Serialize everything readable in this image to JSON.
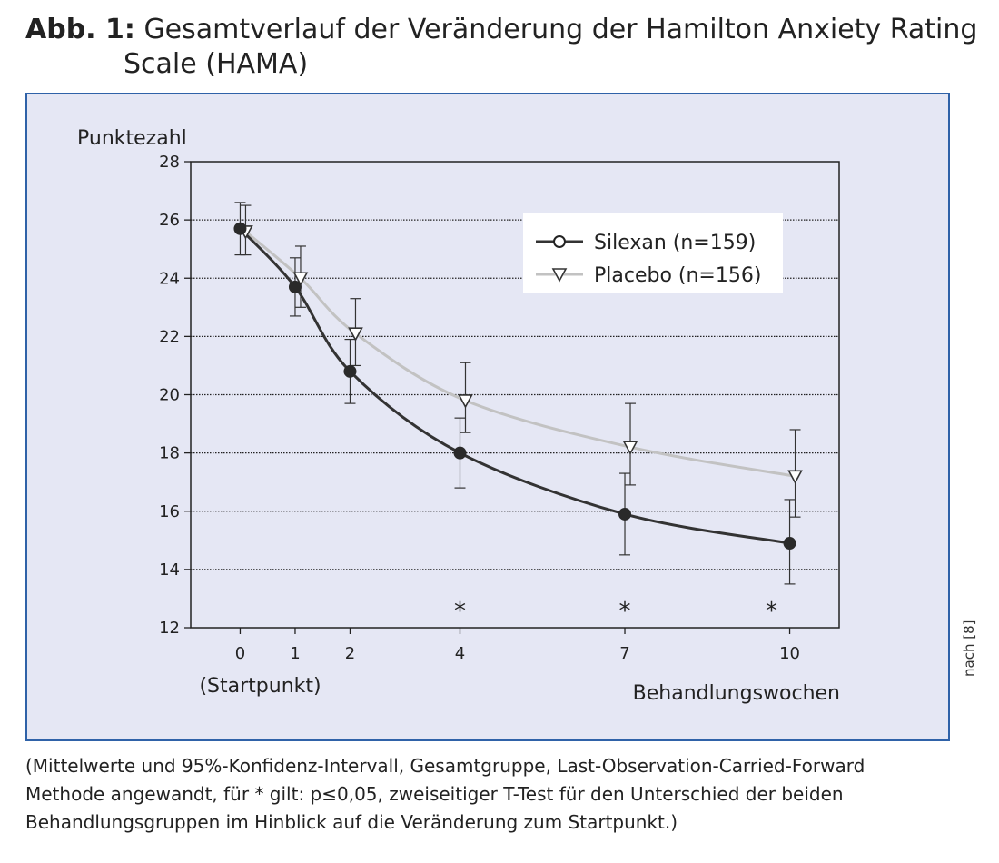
{
  "figure": {
    "label": "Abb. 1:",
    "title_line1": "Gesamtverlauf der Veränderung der Hamilton Anxiety Rating",
    "title_line2": "Scale (HAMA)",
    "source": "nach [8]",
    "caption": "(Mittelwerte und 95%-Konfidenz-Intervall, Gesamtgruppe, Last-Observation-Carried-Forward\nMethode angewandt, für * gilt: p≤0,05, zweiseitiger T-Test für den Unterschied der beiden\nBehandlungsgruppen im Hinblick auf die Veränderung zum Startpunkt.)",
    "colors": {
      "panel_bg": "#e5e7f4",
      "panel_border": "#2f62a8"
    }
  },
  "chart_data": {
    "type": "line",
    "ylabel": "Punktezahl",
    "xlabel": "Behandlungswochen",
    "x_annotation": "(Startpunkt)",
    "ylim": [
      12,
      28
    ],
    "yticks": [
      12,
      14,
      16,
      18,
      20,
      22,
      24,
      26,
      28
    ],
    "xlim": [
      -0.9,
      10.9
    ],
    "xticks": [
      0,
      1,
      2,
      4,
      7,
      10
    ],
    "grid": "horizontal",
    "legend_position": "top-right",
    "significance_marker": "*",
    "significant_at": [
      4,
      7,
      10
    ],
    "series": [
      {
        "name": "Silexan (n=159)",
        "marker": "circle",
        "color": "#333333",
        "x": [
          0,
          1,
          2,
          4,
          7,
          10
        ],
        "values": [
          25.7,
          23.7,
          20.8,
          18.0,
          15.9,
          14.9
        ],
        "ci_low": [
          24.8,
          22.7,
          19.7,
          16.8,
          14.5,
          13.5
        ],
        "ci_high": [
          26.6,
          24.7,
          21.9,
          19.2,
          17.3,
          16.4
        ]
      },
      {
        "name": "Placebo (n=156)",
        "marker": "triangle-down",
        "color": "#c2c2c2",
        "x": [
          0,
          1,
          2,
          4,
          7,
          10
        ],
        "values": [
          25.6,
          24.0,
          22.1,
          19.8,
          18.2,
          17.2
        ],
        "ci_low": [
          24.8,
          23.0,
          21.0,
          18.7,
          16.9,
          15.8
        ],
        "ci_high": [
          26.5,
          25.1,
          23.3,
          21.1,
          19.7,
          18.8
        ]
      }
    ]
  }
}
